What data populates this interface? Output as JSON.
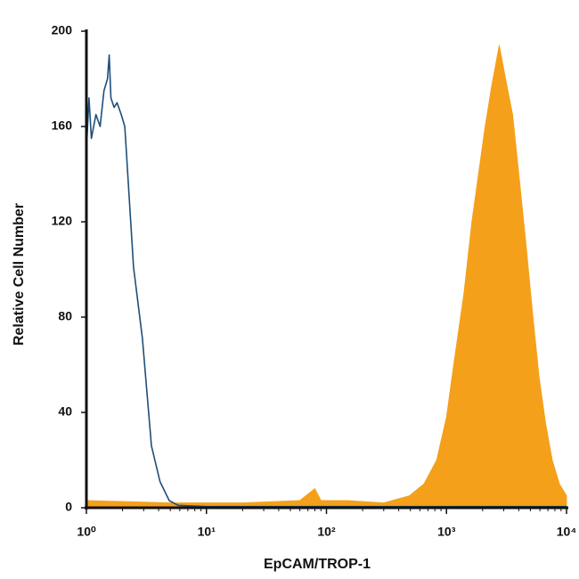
{
  "chart_data": {
    "type": "histogram",
    "xlabel": "EpCAM/TROP-1",
    "ylabel": "Relative Cell Number",
    "xscale": "log",
    "xlim": [
      1,
      10000
    ],
    "ylim": [
      0,
      200
    ],
    "xticks": [
      {
        "value": 1,
        "label": "10⁰"
      },
      {
        "value": 10,
        "label": "10¹"
      },
      {
        "value": 100,
        "label": "10²"
      },
      {
        "value": 1000,
        "label": "10³"
      },
      {
        "value": 10000,
        "label": "10⁴"
      }
    ],
    "yticks": [
      0,
      40,
      80,
      120,
      160,
      200
    ],
    "series": [
      {
        "color": "#f5a01a",
        "fill": true,
        "x": [
          1,
          1.02,
          5,
          20,
          60,
          80,
          90,
          150,
          300,
          492,
          650,
          830,
          1000,
          1150,
          1400,
          1630,
          2100,
          2400,
          2750,
          3100,
          3550,
          4000,
          4600,
          5200,
          5900,
          6700,
          7600,
          8700,
          10000
        ],
        "values": [
          0,
          3,
          2,
          2,
          3,
          8,
          3,
          3,
          2,
          5,
          10,
          20,
          38,
          60,
          90,
          120,
          160,
          178,
          194,
          180,
          165,
          140,
          110,
          82,
          55,
          35,
          20,
          10,
          5
        ]
      },
      {
        "color": "#1f4e79",
        "fill": false,
        "x": [
          1,
          1.05,
          1.1,
          1.2,
          1.3,
          1.4,
          1.5,
          1.55,
          1.6,
          1.7,
          1.8,
          1.95,
          2.09,
          2.47,
          2.93,
          3.48,
          4.1,
          4.9,
          5.8,
          10,
          100,
          1000,
          10000
        ],
        "values": [
          150,
          172,
          155,
          165,
          160,
          175,
          180,
          190,
          172,
          168,
          170,
          165,
          160,
          101,
          71,
          26,
          11,
          3,
          1,
          0.5,
          0.5,
          0.5,
          0.5
        ]
      }
    ]
  }
}
